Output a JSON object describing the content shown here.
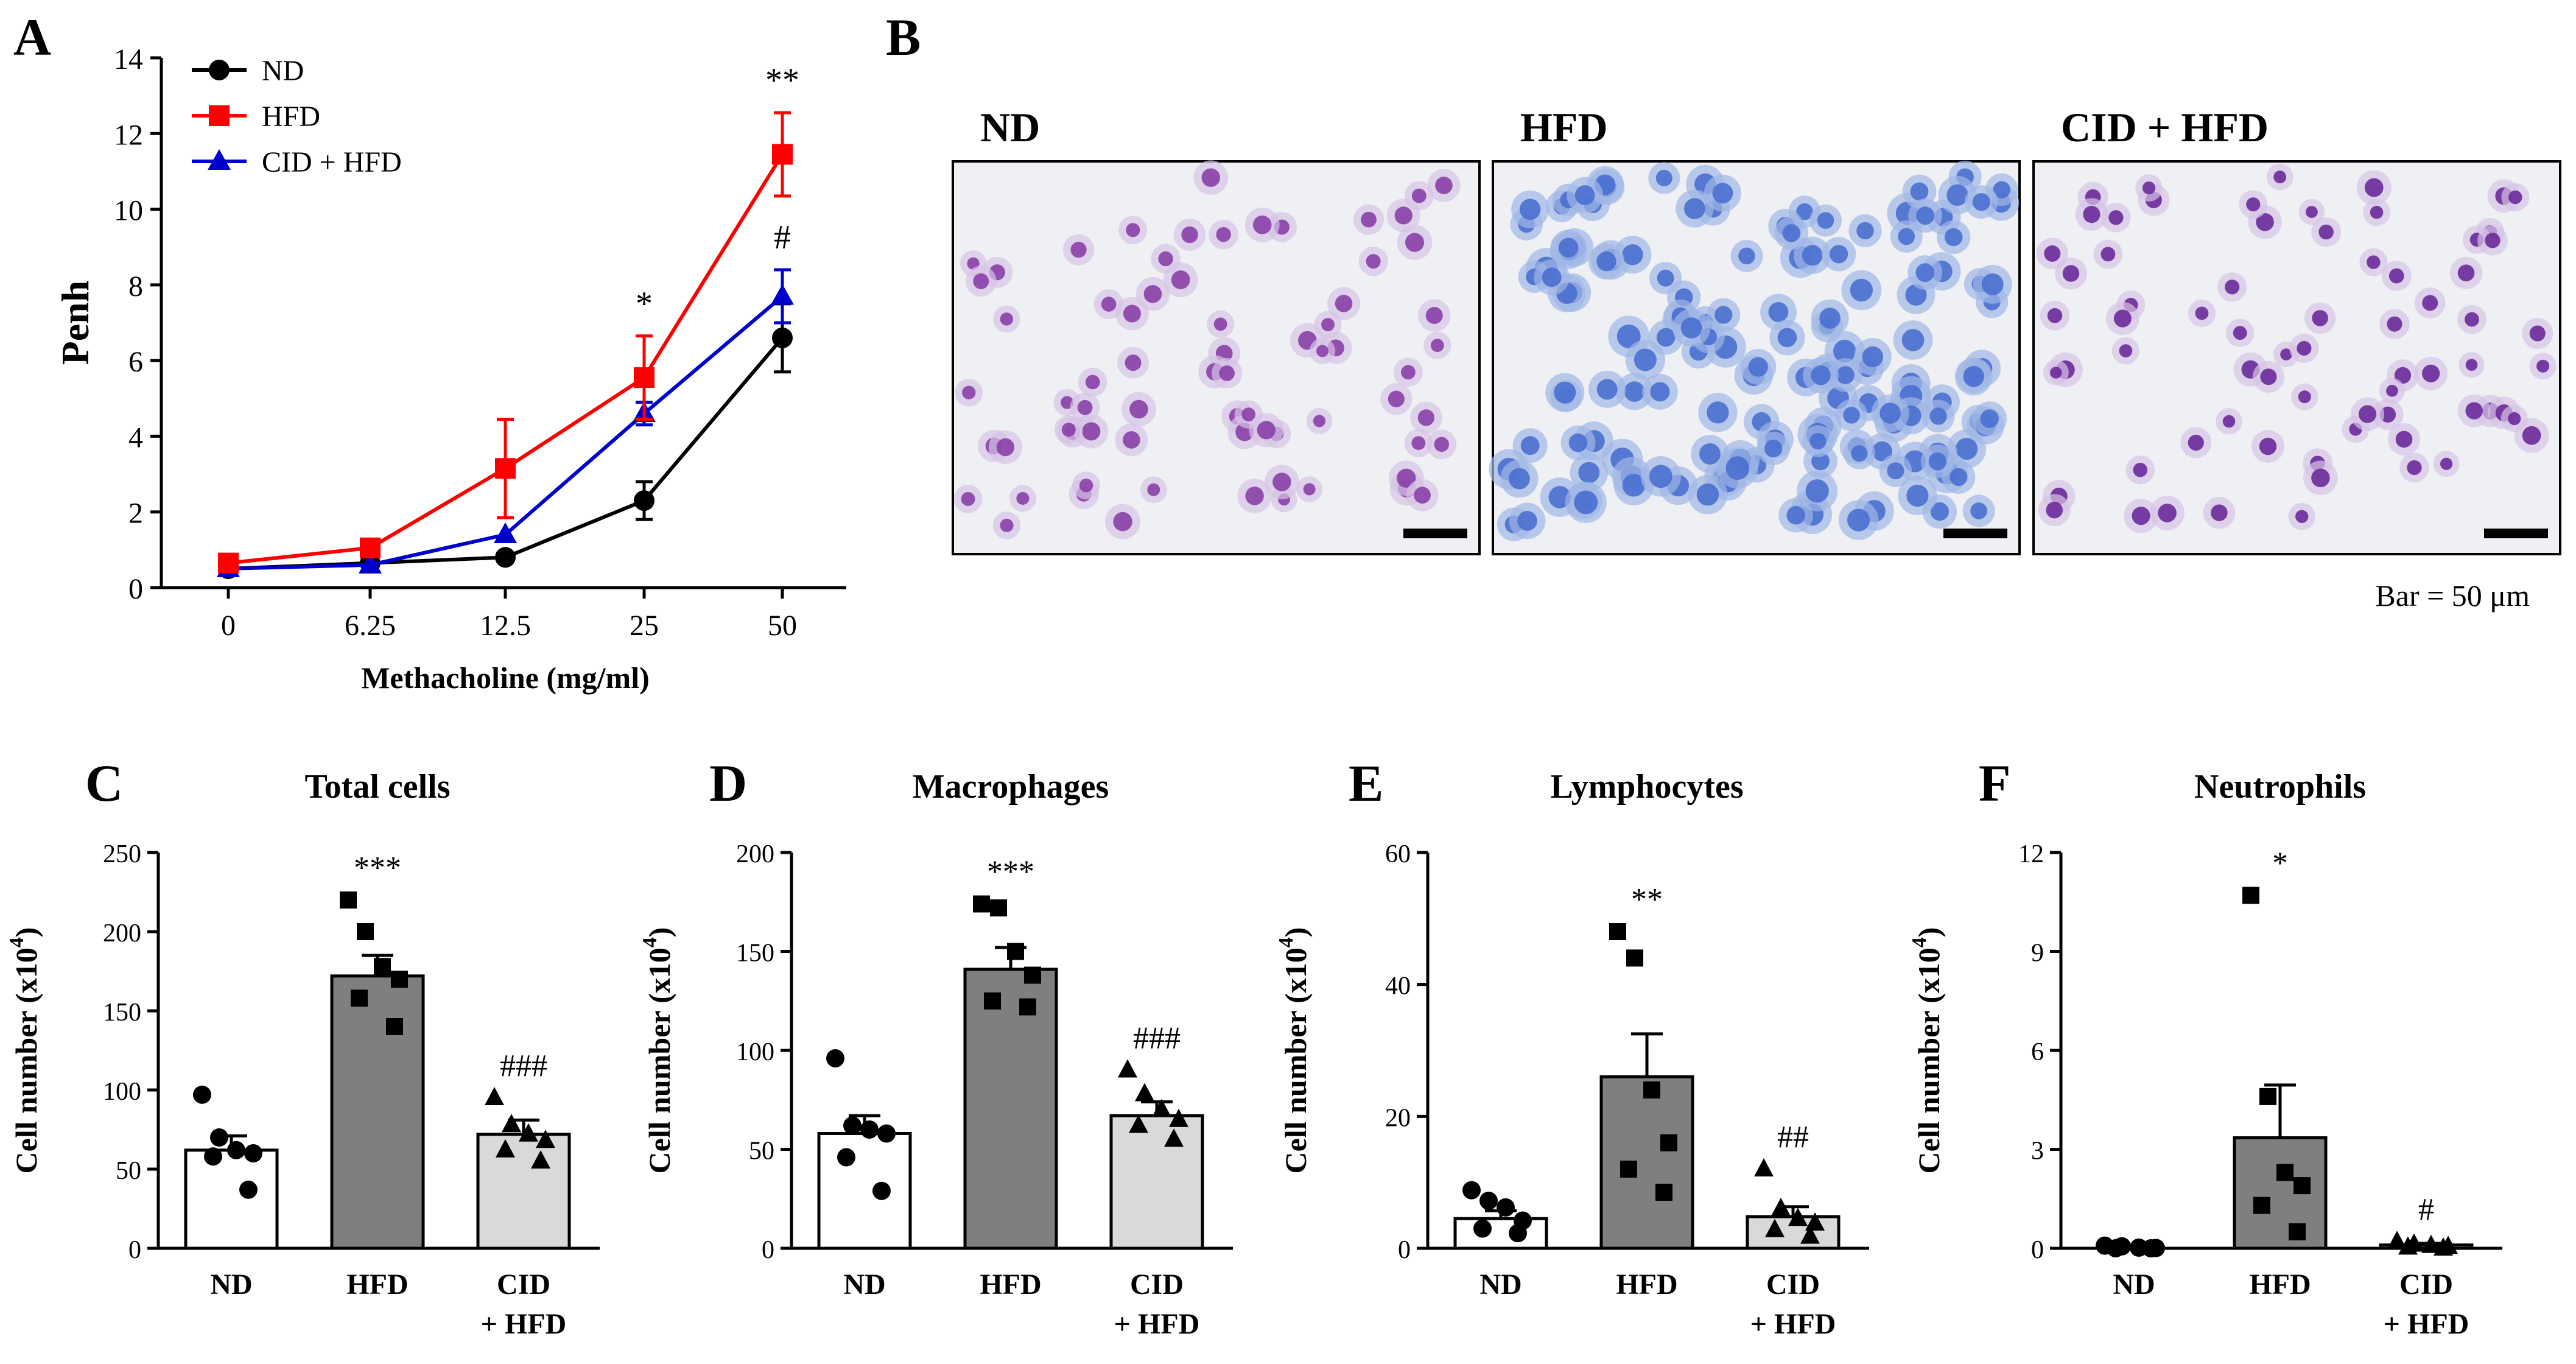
{
  "colors": {
    "nd": "#000000",
    "hfd": "#ff0000",
    "cid_hfd": "#0000cc",
    "bar_nd": "#ffffff",
    "bar_hfd": "#7f7f7f",
    "bar_cid": "#d9d9d9",
    "nd_stain": "#8a3fa8",
    "hfd_stain": "#4a6fcf",
    "cid_stain": "#6a2a9a"
  },
  "panels": {
    "A": "A",
    "B": "B",
    "C": "C",
    "D": "D",
    "E": "E",
    "F": "F"
  },
  "micrographs": {
    "labels": [
      "ND",
      "HFD",
      "CID + HFD"
    ],
    "scale_caption": "Bar = 50 μm"
  },
  "chart_data": [
    {
      "type": "line",
      "panel": "A",
      "title": "",
      "xlabel": "Methacholine (mg/ml)",
      "ylabel": "Penh",
      "x": [
        "0",
        "6.25",
        "12.5",
        "25",
        "50"
      ],
      "ylim": [
        0,
        14
      ],
      "yticks": [
        "0",
        "2",
        "4",
        "6",
        "8",
        "10",
        "12",
        "14"
      ],
      "legend": "top-left",
      "series": [
        {
          "name": "ND",
          "marker": "circle",
          "values": [
            0.5,
            0.65,
            0.8,
            2.3,
            6.6
          ],
          "err": [
            0.1,
            0.1,
            0.1,
            0.5,
            0.9
          ],
          "sig": [
            "",
            "",
            "",
            "",
            ""
          ]
        },
        {
          "name": "HFD",
          "marker": "square",
          "values": [
            0.65,
            1.05,
            3.15,
            5.55,
            11.45
          ],
          "err": [
            0.1,
            0.1,
            1.3,
            1.1,
            1.1
          ],
          "sig": [
            "",
            "",
            "",
            "*",
            "**"
          ]
        },
        {
          "name": "CID + HFD",
          "marker": "triangle",
          "values": [
            0.5,
            0.6,
            1.4,
            4.6,
            7.7
          ],
          "err": [
            0.05,
            0.1,
            0.1,
            0.3,
            0.7
          ],
          "sig": [
            "",
            "",
            "",
            "",
            "#"
          ]
        }
      ]
    },
    {
      "type": "bar",
      "panel": "C",
      "title": "Total cells",
      "ylabel": "Cell number (x10",
      "ylabel_sup": "4",
      "ylabel_close": ")",
      "categories": [
        "ND",
        "HFD",
        "CID + HFD"
      ],
      "ylim": [
        0,
        250
      ],
      "yticks": [
        "0",
        "50",
        "100",
        "150",
        "200",
        "250"
      ],
      "values": [
        62,
        172,
        72
      ],
      "sem": [
        9,
        13,
        9
      ],
      "points": [
        [
          97,
          70,
          62,
          60,
          58,
          37
        ],
        [
          220,
          200,
          178,
          170,
          158,
          140
        ],
        [
          95,
          78,
          72,
          68,
          62,
          55
        ]
      ],
      "sig": [
        "",
        "***",
        "###"
      ]
    },
    {
      "type": "bar",
      "panel": "D",
      "title": "Macrophages",
      "ylabel": "Cell number (x10",
      "ylabel_sup": "4",
      "ylabel_close": ")",
      "categories": [
        "ND",
        "HFD",
        "CID + HFD"
      ],
      "ylim": [
        0,
        200
      ],
      "yticks": [
        "0",
        "50",
        "100",
        "150",
        "200"
      ],
      "values": [
        58,
        141,
        67
      ],
      "sem": [
        9,
        11,
        7
      ],
      "points": [
        [
          96,
          62,
          60,
          58,
          46,
          29
        ],
        [
          174,
          172,
          150,
          138,
          125,
          122
        ],
        [
          90,
          78,
          70,
          65,
          62,
          55
        ]
      ],
      "sig": [
        "",
        "***",
        "###"
      ]
    },
    {
      "type": "bar",
      "panel": "E",
      "title": "Lymphocytes",
      "ylabel": "Cell number (x10",
      "ylabel_sup": "4",
      "ylabel_close": ")",
      "categories": [
        "ND",
        "HFD",
        "CID + HFD"
      ],
      "ylim": [
        0,
        60
      ],
      "yticks": [
        "0",
        "20",
        "40",
        "60"
      ],
      "values": [
        4.5,
        26,
        4.8
      ],
      "sem": [
        1.2,
        6.5,
        1.5
      ],
      "points": [
        [
          8.8,
          7.2,
          6.2,
          4.2,
          3.0,
          2.3
        ],
        [
          48,
          44,
          24,
          16,
          12,
          8.5
        ],
        [
          12,
          6,
          4.5,
          3.8,
          2.8,
          1.8
        ]
      ],
      "sig": [
        "",
        "**",
        "##"
      ]
    },
    {
      "type": "bar",
      "panel": "F",
      "title": "Neutrophils",
      "ylabel": "Cell number (x10",
      "ylabel_sup": "4",
      "ylabel_close": ")",
      "categories": [
        "ND",
        "HFD",
        "CID + HFD"
      ],
      "ylim": [
        0,
        12
      ],
      "yticks": [
        "0",
        "3",
        "6",
        "9",
        "12"
      ],
      "values": [
        0.0,
        3.35,
        0.1
      ],
      "sem": [
        0.02,
        1.6,
        0.05
      ],
      "points": [
        [
          0.08,
          0.06,
          0.02,
          0.01,
          0.0,
          0.0
        ],
        [
          10.7,
          4.6,
          2.3,
          1.9,
          1.3,
          0.5
        ],
        [
          0.2,
          0.12,
          0.08,
          0.05,
          0.03,
          0.0
        ]
      ],
      "sig": [
        "",
        "*",
        "#"
      ]
    }
  ]
}
